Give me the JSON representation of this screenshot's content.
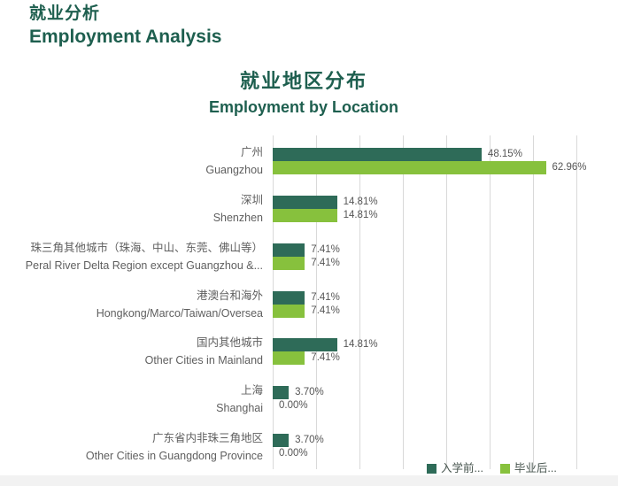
{
  "header": {
    "title_zh": "就业分析",
    "title_en": "Employment Analysis"
  },
  "colors": {
    "title_green": "#1e5f4f",
    "series_before": "#2e6b58",
    "series_after": "#87c13d",
    "gridline": "#d9d9d9",
    "category_label": "#5f5f5f",
    "value_label": "#555555",
    "bottom_strip": "#f2f2f2"
  },
  "chart_data": {
    "type": "bar",
    "orientation": "horizontal",
    "title_zh": "就业地区分布",
    "title_en": "Employment by Location",
    "categories": [
      {
        "zh": "广州",
        "en": "Guangzhou"
      },
      {
        "zh": "深圳",
        "en": "Shenzhen"
      },
      {
        "zh": "珠三角其他城市（珠海、中山、东莞、佛山等）",
        "en": "Peral River Delta Region except Guangzhou &..."
      },
      {
        "zh": "港澳台和海外",
        "en": "Hongkong/Marco/Taiwan/Oversea"
      },
      {
        "zh": "国内其他城市",
        "en": "Other Cities in Mainland"
      },
      {
        "zh": "上海",
        "en": "Shanghai"
      },
      {
        "zh": "广东省内非珠三角地区",
        "en": "Other Cities in Guangdong Province"
      }
    ],
    "series": [
      {
        "name": "入学前...",
        "color": "#2e6b58",
        "values": [
          48.15,
          14.81,
          7.41,
          7.41,
          14.81,
          3.7,
          3.7
        ]
      },
      {
        "name": "毕业后...",
        "color": "#87c13d",
        "values": [
          62.96,
          14.81,
          7.41,
          7.41,
          7.41,
          0.0,
          0.0
        ]
      }
    ],
    "value_suffix": "%",
    "value_decimals": 2,
    "xlim": [
      0,
      70
    ],
    "gridline_interval": 10,
    "grid": true,
    "legend_position": "bottom-right"
  }
}
